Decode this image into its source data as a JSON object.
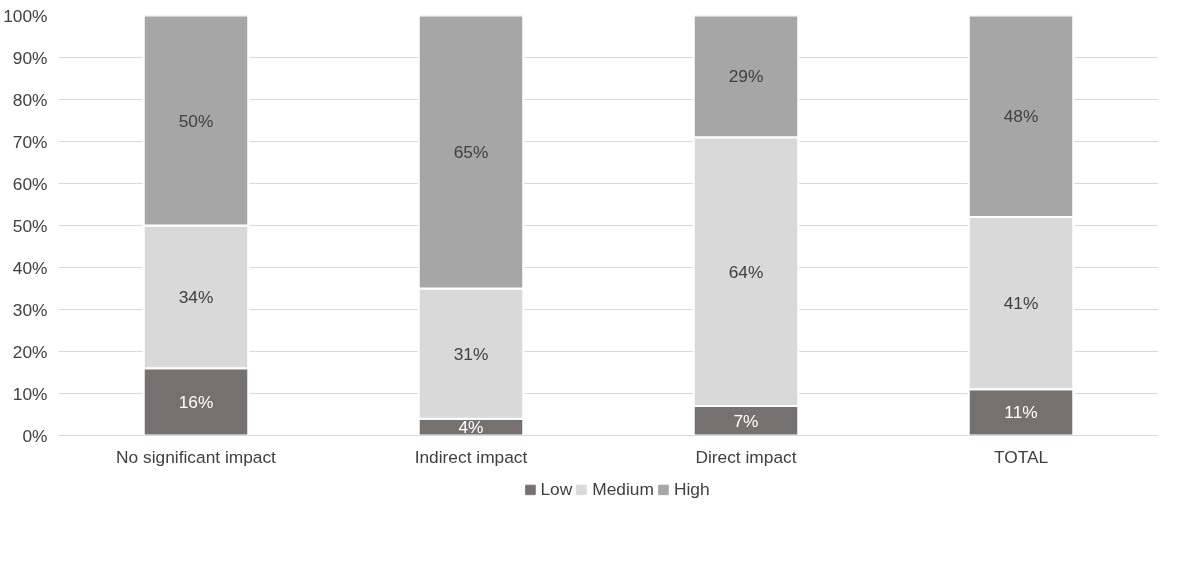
{
  "chart_data": {
    "type": "bar",
    "stacked": true,
    "categories": [
      "No significant impact",
      "Indirect impact",
      "Direct impact",
      "TOTAL"
    ],
    "series": [
      {
        "name": "Low",
        "color": "#767171",
        "values": [
          16,
          4,
          7,
          11
        ],
        "value_labels": [
          "16%",
          "4%",
          "7%",
          "11%"
        ]
      },
      {
        "name": "Medium",
        "color": "#d9d9d9",
        "values": [
          34,
          31,
          64,
          41
        ],
        "value_labels": [
          "34%",
          "31%",
          "64%",
          "41%"
        ]
      },
      {
        "name": "High",
        "color": "#a6a6a6",
        "values": [
          50,
          65,
          29,
          48
        ],
        "value_labels": [
          "50%",
          "65%",
          "29%",
          "48%"
        ]
      }
    ],
    "ylim": [
      0,
      100
    ],
    "yticks": [
      {
        "value": 0,
        "label": "0%"
      },
      {
        "value": 10,
        "label": "10%"
      },
      {
        "value": 20,
        "label": "20%"
      },
      {
        "value": 30,
        "label": "30%"
      },
      {
        "value": 40,
        "label": "40%"
      },
      {
        "value": 50,
        "label": "50%"
      },
      {
        "value": 60,
        "label": "60%"
      },
      {
        "value": 70,
        "label": "70%"
      },
      {
        "value": 80,
        "label": "80%"
      },
      {
        "value": 90,
        "label": "90%"
      },
      {
        "value": 100,
        "label": "100%"
      }
    ],
    "data_labels": true,
    "grid": "y",
    "legend": "bottom"
  }
}
